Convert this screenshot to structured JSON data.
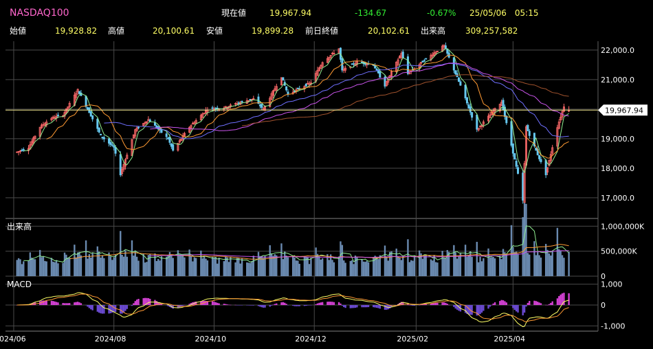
{
  "header": {
    "symbol": "NASDAQ100",
    "current_label": "現在値",
    "current_value": "19,967.94",
    "change": "-134.67",
    "change_pct": "-0.67%",
    "datetime": "25/05/06　05:15",
    "open_label": "始値",
    "open_value": "19,928.82",
    "high_label": "高値",
    "high_value": "20,100.61",
    "low_label": "安値",
    "low_value": "19,899.28",
    "prev_close_label": "前日終値",
    "prev_close_value": "20,102.61",
    "volume_label": "出来高",
    "volume_value": "309,257,582"
  },
  "colors": {
    "background": "#000000",
    "grid": "#4a4a4a",
    "up": "#ff6a6a",
    "down": "#66c8f0",
    "ma_short": "#90ee90",
    "ma_mid": "#ff9a33",
    "ma_long1": "#6f6fff",
    "ma_long2": "#cc55ee",
    "ma_200": "#a0522d",
    "current_line": "#f0e68c",
    "volume_bar": "#6a8ab0",
    "macd_line": "#ffff66",
    "signal_line": "#ff9933",
    "hist_pos": "#d040d0",
    "hist_neg": "#6a4ad0"
  },
  "chart_data": {
    "type": "candlestick",
    "x_ticks": [
      "2024/06",
      "2024/08",
      "2024/10",
      "2024/12",
      "2025/02",
      "2025/04"
    ],
    "price_panel": {
      "y_ticks": [
        "22,000.0",
        "21,000.0",
        "20,000.0",
        "19,000.0",
        "18,000.0",
        "17,000.0"
      ],
      "ylim": [
        16300,
        22300
      ],
      "current_price_label": "19,967.94",
      "close_path": [
        [
          "2024-06-03",
          18550
        ],
        [
          "2024-06-10",
          18700
        ],
        [
          "2024-06-17",
          19400
        ],
        [
          "2024-06-24",
          19700
        ],
        [
          "2024-07-01",
          19800
        ],
        [
          "2024-07-10",
          20650
        ],
        [
          "2024-07-17",
          19900
        ],
        [
          "2024-07-24",
          19100
        ],
        [
          "2024-08-01",
          18700
        ],
        [
          "2024-08-05",
          17800
        ],
        [
          "2024-08-14",
          19300
        ],
        [
          "2024-08-22",
          19650
        ],
        [
          "2024-09-03",
          19000
        ],
        [
          "2024-09-06",
          18600
        ],
        [
          "2024-09-16",
          19400
        ],
        [
          "2024-09-27",
          20000
        ],
        [
          "2024-10-07",
          20050
        ],
        [
          "2024-10-15",
          20200
        ],
        [
          "2024-10-25",
          20350
        ],
        [
          "2024-10-31",
          20000
        ],
        [
          "2024-11-11",
          21100
        ],
        [
          "2024-11-15",
          20500
        ],
        [
          "2024-11-29",
          20900
        ],
        [
          "2024-12-06",
          21600
        ],
        [
          "2024-12-16",
          22050
        ],
        [
          "2024-12-18",
          21300
        ],
        [
          "2024-12-27",
          21600
        ],
        [
          "2025-01-06",
          21500
        ],
        [
          "2025-01-13",
          20800
        ],
        [
          "2025-01-23",
          21900
        ],
        [
          "2025-01-27",
          21200
        ],
        [
          "2025-02-07",
          21700
        ],
        [
          "2025-02-18",
          22150
        ],
        [
          "2025-02-28",
          20800
        ],
        [
          "2025-03-10",
          19300
        ],
        [
          "2025-03-25",
          20250
        ],
        [
          "2025-04-04",
          17800
        ],
        [
          "2025-04-07",
          16900
        ],
        [
          "2025-04-09",
          19400
        ],
        [
          "2025-04-21",
          17800
        ],
        [
          "2025-04-28",
          19400
        ],
        [
          "2025-05-02",
          20100
        ],
        [
          "2025-05-05",
          19968
        ]
      ]
    },
    "volume_panel": {
      "label": "出来高",
      "y_ticks": [
        "1,000,000K",
        "500,000K",
        "0"
      ],
      "ylim": [
        0,
        1100000
      ]
    },
    "macd_panel": {
      "label": "MACD",
      "y_ticks": [
        "1,000",
        "0",
        "-1,000"
      ],
      "ylim": [
        -1250,
        1250
      ]
    }
  }
}
